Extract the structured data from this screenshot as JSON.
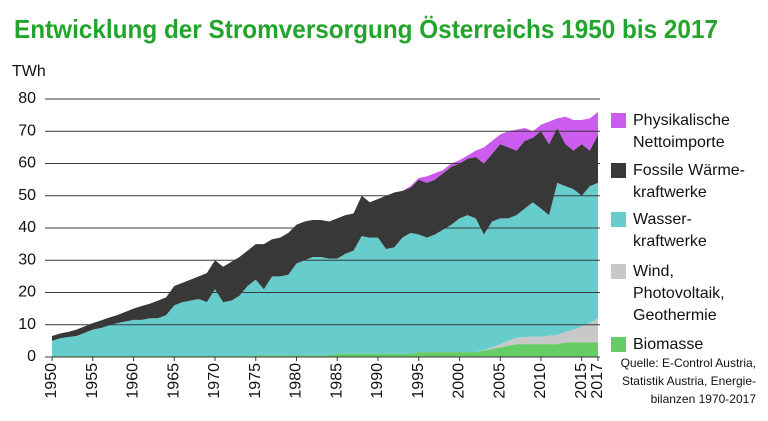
{
  "chart_data": {
    "type": "stacked_area",
    "title": "Entwicklung der Stromversorgung Österreichs 1950 bis 2017",
    "y_label": "TWh",
    "source": [
      "Quelle: E-Control Austria,",
      "Statistik Austria, Energie-",
      "bilanzen 1970-2017"
    ],
    "x": [
      1950,
      1951,
      1952,
      1953,
      1954,
      1955,
      1956,
      1957,
      1958,
      1959,
      1960,
      1961,
      1962,
      1963,
      1964,
      1965,
      1966,
      1967,
      1968,
      1969,
      1970,
      1971,
      1972,
      1973,
      1974,
      1975,
      1976,
      1977,
      1978,
      1979,
      1980,
      1981,
      1982,
      1983,
      1984,
      1985,
      1986,
      1987,
      1988,
      1989,
      1990,
      1991,
      1992,
      1993,
      1994,
      1995,
      1996,
      1997,
      1998,
      1999,
      2000,
      2001,
      2002,
      2003,
      2004,
      2005,
      2006,
      2007,
      2008,
      2009,
      2010,
      2011,
      2012,
      2013,
      2014,
      2015,
      2016,
      2017
    ],
    "xlim": [
      1950,
      2017
    ],
    "xticks": [
      1950,
      1955,
      1960,
      1965,
      1970,
      1975,
      1980,
      1985,
      1990,
      1995,
      2000,
      2005,
      2010,
      2015,
      2017
    ],
    "ylim": [
      0,
      80
    ],
    "yticks": [
      0,
      10,
      20,
      30,
      40,
      50,
      60,
      70,
      80
    ],
    "grid": true,
    "series": [
      {
        "name": [
          "Physikalische",
          "Nettoimporte"
        ],
        "color": "#cc5bef",
        "values": [
          0,
          0,
          0,
          0,
          0,
          0,
          0,
          0,
          0,
          0,
          0,
          0,
          0,
          0,
          0,
          0,
          0,
          0,
          0,
          0,
          0,
          0,
          0,
          0,
          0,
          0,
          0,
          0,
          0,
          0,
          0,
          0,
          0,
          0,
          0,
          0,
          0,
          0,
          0,
          0,
          0,
          0,
          0,
          0,
          0.5,
          0.5,
          2,
          2,
          1,
          1,
          1,
          1,
          2,
          5,
          4,
          3,
          5,
          6.5,
          4,
          2,
          2,
          7,
          3,
          8.5,
          9.5,
          7.5,
          10,
          7
        ]
      },
      {
        "name": [
          "Fossile Wärme-",
          "kraftwerke"
        ],
        "color": "#383838",
        "values": [
          1.5,
          1.5,
          1.6,
          2,
          2,
          2,
          2.3,
          2.4,
          2.5,
          3,
          3.5,
          4.3,
          4.5,
          5.5,
          5.5,
          6,
          6,
          6.5,
          7,
          9,
          9,
          11,
          12,
          12,
          11,
          11,
          14,
          11.5,
          12,
          13,
          12,
          12,
          11.5,
          11.5,
          11.5,
          12.5,
          12,
          11.5,
          12.5,
          11,
          12,
          16.5,
          17,
          14.5,
          14,
          17,
          17,
          17,
          17.5,
          18,
          17,
          17.5,
          19,
          22,
          21,
          23,
          22,
          20,
          21,
          20,
          24,
          22,
          17,
          13,
          12,
          16,
          11,
          15
        ]
      },
      {
        "name": [
          "Wasser-",
          "kraftwerke"
        ],
        "color": "#66cccc",
        "values": [
          4.7,
          5.5,
          5.9,
          6.2,
          7.2,
          8.2,
          8.7,
          9.5,
          10.2,
          10.7,
          11.2,
          11.2,
          11.7,
          11.7,
          12.7,
          15.7,
          16.7,
          17.2,
          17.7,
          16.7,
          20.7,
          16.7,
          17.2,
          18.7,
          21.7,
          23.5,
          20.5,
          24.5,
          24.5,
          25,
          28.5,
          29.5,
          30.5,
          30.5,
          30,
          29.5,
          31,
          32,
          36.5,
          36,
          36,
          32.5,
          33,
          36,
          37.5,
          36.5,
          35.5,
          36.5,
          38,
          39.5,
          41.5,
          42.5,
          41.5,
          35.8,
          39,
          39,
          38,
          38,
          39.8,
          41.7,
          39.7,
          37.4,
          47.2,
          45.2,
          43.5,
          40.5,
          42.5,
          42
        ]
      },
      {
        "name": [
          "Wind,",
          "Photovoltaik,",
          "Geothermie"
        ],
        "color": "#c8c8c8",
        "values": [
          0,
          0,
          0,
          0,
          0,
          0,
          0,
          0,
          0,
          0,
          0,
          0,
          0,
          0,
          0,
          0,
          0,
          0,
          0,
          0,
          0,
          0,
          0,
          0,
          0,
          0,
          0,
          0,
          0,
          0,
          0,
          0,
          0,
          0,
          0,
          0,
          0,
          0,
          0,
          0,
          0,
          0,
          0,
          0,
          0,
          0,
          0,
          0,
          0,
          0,
          0,
          0,
          0,
          0.2,
          0.5,
          1,
          1.5,
          2,
          2.2,
          2.3,
          2.3,
          2.6,
          2.8,
          3.3,
          4,
          5,
          6,
          7.5
        ]
      },
      {
        "name": [
          "Biomasse"
        ],
        "color": "#66cc66",
        "values": [
          0.3,
          0.3,
          0.3,
          0.3,
          0.3,
          0.3,
          0.3,
          0.3,
          0.3,
          0.3,
          0.3,
          0.3,
          0.3,
          0.3,
          0.3,
          0.3,
          0.3,
          0.3,
          0.3,
          0.3,
          0.3,
          0.3,
          0.3,
          0.3,
          0.3,
          0.5,
          0.5,
          0.5,
          0.5,
          0.5,
          0.5,
          0.5,
          0.5,
          0.5,
          0.5,
          1,
          1,
          1,
          1,
          1,
          1,
          1,
          1,
          1,
          1,
          1.5,
          1.5,
          1.5,
          1.5,
          1.5,
          1.5,
          1.5,
          1.5,
          2,
          2.5,
          3,
          3.5,
          4,
          4,
          4,
          4,
          4,
          4,
          4.5,
          4.5,
          4.5,
          4.5,
          4.5
        ]
      }
    ]
  }
}
